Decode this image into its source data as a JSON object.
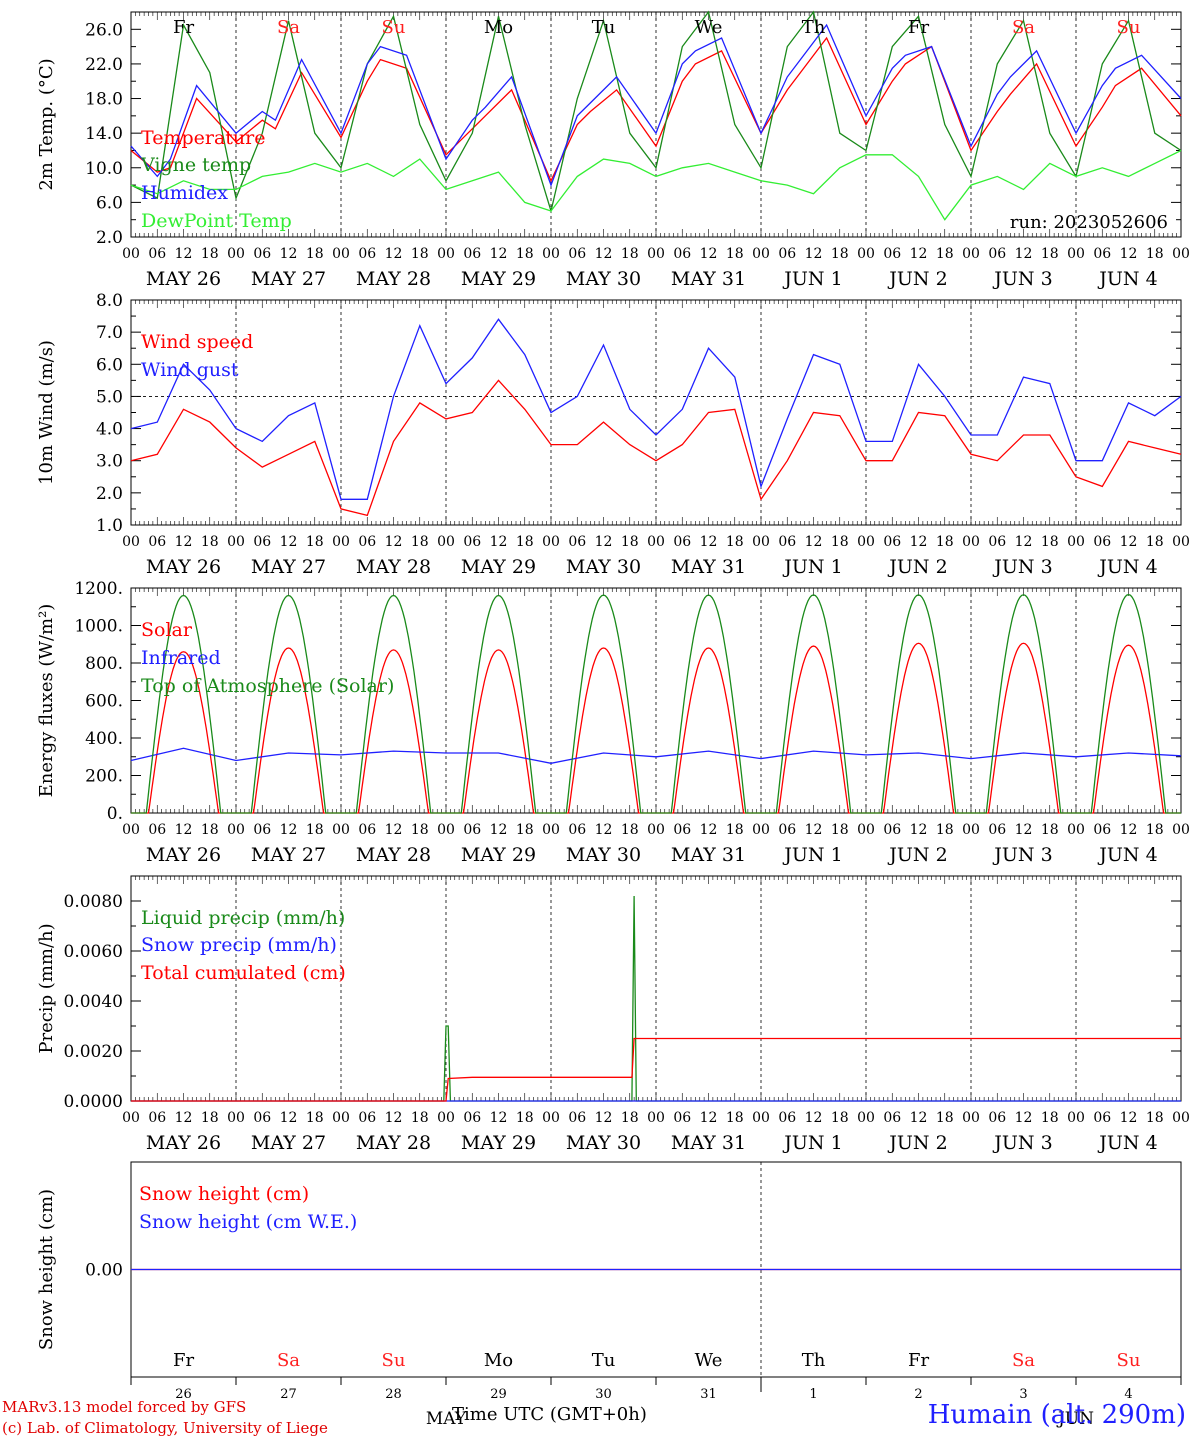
{
  "chart_data": [
    {
      "type": "line",
      "ylabel": "2m Temp. (°C)",
      "ylim": [
        2,
        28
      ],
      "yticks": [
        "2.0",
        "6.0",
        "10.0",
        "14.0",
        "18.0",
        "22.0",
        "26.0"
      ],
      "ytick_values": [
        2,
        6,
        10,
        14,
        18,
        22,
        26
      ],
      "run_label": "run: 2023052606",
      "x_day_labels": [
        "MAY 26",
        "MAY 27",
        "MAY 28",
        "MAY 29",
        "MAY 30",
        "MAY 31",
        "JUN  1",
        "JUN  2",
        "JUN  3",
        "JUN  4"
      ],
      "x_hour_labels": [
        "00",
        "06",
        "12",
        "18"
      ],
      "weekdays": [
        "Fr",
        "Sa",
        "Su",
        "Mo",
        "Tu",
        "We",
        "Th",
        "Fr",
        "Sa",
        "Su"
      ],
      "weekday_colors": [
        "#000000",
        "#ff2020",
        "#ff2020",
        "#000000",
        "#000000",
        "#000000",
        "#000000",
        "#000000",
        "#ff2020",
        "#ff2020"
      ],
      "series": [
        {
          "name": "Temperature",
          "color": "#ff0000",
          "x_hours": [
            0,
            6,
            9,
            15,
            24,
            30,
            33,
            39,
            48,
            54,
            57,
            63,
            72,
            78,
            81,
            87,
            96,
            102,
            105,
            111,
            120,
            126,
            129,
            135,
            144,
            150,
            153,
            159,
            168,
            174,
            177,
            183,
            192,
            198,
            201,
            207,
            216,
            222,
            225,
            231,
            240
          ],
          "values": [
            12.0,
            9.5,
            10.0,
            18.0,
            13.0,
            15.5,
            14.5,
            21.0,
            13.5,
            20.0,
            22.5,
            21.5,
            11.5,
            14.5,
            16.0,
            19.0,
            8.5,
            15.0,
            16.5,
            19.0,
            12.5,
            20.0,
            22.0,
            23.5,
            14.0,
            19.0,
            21.0,
            25.0,
            15.0,
            20.0,
            22.0,
            24.0,
            12.0,
            16.5,
            18.5,
            22.0,
            12.5,
            17.0,
            19.5,
            21.5,
            16.0
          ]
        },
        {
          "name": "Vigne temp",
          "color": "#1a8a1a",
          "x_hours": [
            0,
            6,
            12,
            18,
            24,
            30,
            36,
            42,
            48,
            54,
            60,
            66,
            72,
            78,
            84,
            90,
            96,
            102,
            108,
            114,
            120,
            126,
            132,
            138,
            144,
            150,
            156,
            162,
            168,
            174,
            180,
            186,
            192,
            198,
            204,
            210,
            216,
            222,
            228,
            234,
            240
          ],
          "values": [
            8.0,
            6.5,
            26.5,
            21.0,
            6.5,
            14.0,
            27.0,
            14.0,
            10.0,
            22.0,
            27.5,
            15.0,
            8.5,
            14.0,
            27.5,
            15.0,
            5.0,
            18.0,
            27.0,
            14.0,
            10.0,
            24.0,
            28.0,
            15.0,
            10.0,
            24.0,
            28.0,
            14.0,
            12.0,
            24.0,
            27.5,
            15.0,
            9.0,
            22.0,
            27.0,
            14.0,
            9.0,
            22.0,
            27.0,
            14.0,
            12.0
          ]
        },
        {
          "name": "Humidex",
          "color": "#2020ff",
          "x_hours": [
            0,
            6,
            9,
            15,
            24,
            30,
            33,
            39,
            48,
            54,
            57,
            63,
            72,
            78,
            81,
            87,
            96,
            102,
            105,
            111,
            120,
            126,
            129,
            135,
            144,
            150,
            153,
            159,
            168,
            174,
            177,
            183,
            192,
            198,
            201,
            207,
            216,
            222,
            225,
            231,
            240
          ],
          "values": [
            12.5,
            9.0,
            11.0,
            19.5,
            14.0,
            16.5,
            15.5,
            22.5,
            14.0,
            22.0,
            24.0,
            23.0,
            11.0,
            15.5,
            17.0,
            20.5,
            8.0,
            16.0,
            17.5,
            20.5,
            14.0,
            22.0,
            23.5,
            25.0,
            14.0,
            20.5,
            22.5,
            26.5,
            16.0,
            21.5,
            23.0,
            24.0,
            12.5,
            18.5,
            20.5,
            23.5,
            14.0,
            19.5,
            21.5,
            23.0,
            18.0
          ]
        },
        {
          "name": "DewPoint Temp",
          "color": "#33ee33",
          "x_hours": [
            0,
            6,
            12,
            18,
            24,
            30,
            36,
            42,
            48,
            54,
            60,
            66,
            72,
            78,
            84,
            90,
            96,
            102,
            108,
            114,
            120,
            126,
            132,
            138,
            144,
            150,
            156,
            162,
            168,
            174,
            180,
            186,
            192,
            198,
            204,
            210,
            216,
            222,
            228,
            234,
            240
          ],
          "values": [
            8.0,
            7.0,
            8.5,
            7.5,
            7.5,
            9.0,
            9.5,
            10.5,
            9.5,
            10.5,
            9.0,
            11.0,
            7.5,
            8.5,
            9.5,
            6.0,
            5.0,
            9.0,
            11.0,
            10.5,
            9.0,
            10.0,
            10.5,
            9.5,
            8.5,
            8.0,
            7.0,
            10.0,
            11.5,
            11.5,
            9.0,
            4.0,
            8.0,
            9.0,
            7.5,
            10.5,
            9.0,
            10.0,
            9.0,
            10.5,
            12.0
          ]
        }
      ]
    },
    {
      "type": "line",
      "ylabel": "10m Wind (m/s)",
      "ylim": [
        1,
        8
      ],
      "yticks": [
        "1.0",
        "2.0",
        "3.0",
        "4.0",
        "5.0",
        "6.0",
        "7.0",
        "8.0"
      ],
      "ytick_values": [
        1,
        2,
        3,
        4,
        5,
        6,
        7,
        8
      ],
      "reference_line": 5.0,
      "x_day_labels": [
        "MAY 26",
        "MAY 27",
        "MAY 28",
        "MAY 29",
        "MAY 30",
        "MAY 31",
        "JUN  1",
        "JUN  2",
        "JUN  3",
        "JUN  4"
      ],
      "x_hour_labels": [
        "00",
        "06",
        "12",
        "18"
      ],
      "series": [
        {
          "name": "Wind speed",
          "color": "#ff0000",
          "x_hours": [
            0,
            6,
            12,
            18,
            24,
            30,
            36,
            42,
            48,
            54,
            60,
            66,
            72,
            78,
            84,
            90,
            96,
            102,
            108,
            114,
            120,
            126,
            132,
            138,
            144,
            150,
            156,
            162,
            168,
            174,
            180,
            186,
            192,
            198,
            204,
            210,
            216,
            222,
            228,
            234,
            240
          ],
          "values": [
            3.0,
            3.2,
            4.6,
            4.2,
            3.4,
            2.8,
            3.2,
            3.6,
            1.5,
            1.3,
            3.6,
            4.8,
            4.3,
            4.5,
            5.5,
            4.6,
            3.5,
            3.5,
            4.2,
            3.5,
            3.0,
            3.5,
            4.5,
            4.6,
            1.8,
            3.0,
            4.5,
            4.4,
            3.0,
            3.0,
            4.5,
            4.4,
            3.2,
            3.0,
            3.8,
            3.8,
            2.5,
            2.2,
            3.6,
            3.4,
            3.2
          ]
        },
        {
          "name": "Wind gust",
          "color": "#2020ff",
          "x_hours": [
            0,
            6,
            12,
            18,
            24,
            30,
            36,
            42,
            48,
            54,
            60,
            66,
            72,
            78,
            84,
            90,
            96,
            102,
            108,
            114,
            120,
            126,
            132,
            138,
            144,
            150,
            156,
            162,
            168,
            174,
            180,
            186,
            192,
            198,
            204,
            210,
            216,
            222,
            228,
            234,
            240
          ],
          "values": [
            4.0,
            4.2,
            6.0,
            5.2,
            4.0,
            3.6,
            4.4,
            4.8,
            1.8,
            1.8,
            5.0,
            7.2,
            5.4,
            6.2,
            7.4,
            6.3,
            4.5,
            5.0,
            6.6,
            4.6,
            3.8,
            4.6,
            6.5,
            5.6,
            2.2,
            4.3,
            6.3,
            6.0,
            3.6,
            3.6,
            6.0,
            5.0,
            3.8,
            3.8,
            5.6,
            5.4,
            3.0,
            3.0,
            4.8,
            4.4,
            5.0
          ]
        }
      ]
    },
    {
      "type": "line",
      "ylabel": "Energy fluxes (W/m²)",
      "ylim": [
        0,
        1200
      ],
      "yticks": [
        "0.",
        "200.",
        "400.",
        "600.",
        "800.",
        "1000.",
        "1200."
      ],
      "ytick_values": [
        0,
        200,
        400,
        600,
        800,
        1000,
        1200
      ],
      "x_day_labels": [
        "MAY 26",
        "MAY 27",
        "MAY 28",
        "MAY 29",
        "MAY 30",
        "MAY 31",
        "JUN  1",
        "JUN  2",
        "JUN  3",
        "JUN  4"
      ],
      "x_hour_labels": [
        "00",
        "06",
        "12",
        "18"
      ],
      "series": [
        {
          "name": "Solar",
          "color": "#ff0000",
          "daily_peak": [
            860,
            880,
            870,
            870,
            880,
            880,
            890,
            905,
            905,
            895
          ],
          "sunrise_hour": 4,
          "sunset_hour": 20
        },
        {
          "name": "Infrared",
          "color": "#2020ff",
          "x_hours": [
            0,
            12,
            24,
            36,
            48,
            60,
            72,
            84,
            96,
            108,
            120,
            132,
            144,
            156,
            168,
            180,
            192,
            204,
            216,
            228,
            240
          ],
          "values": [
            280,
            345,
            280,
            320,
            310,
            330,
            320,
            320,
            265,
            320,
            300,
            330,
            290,
            330,
            310,
            320,
            290,
            320,
            300,
            320,
            305
          ]
        },
        {
          "name": "Top of Atmosphere (Solar)",
          "color": "#1a8a1a",
          "daily_peak": [
            1160,
            1160,
            1160,
            1160,
            1162,
            1162,
            1163,
            1163,
            1164,
            1165
          ],
          "sunrise_hour": 3.5,
          "sunset_hour": 20.5
        }
      ]
    },
    {
      "type": "line",
      "ylabel": "Precip (mm/h)",
      "ylim": [
        0,
        0.009
      ],
      "yticks": [
        "0.0000",
        "0.0020",
        "0.0040",
        "0.0060",
        "0.0080"
      ],
      "ytick_values": [
        0,
        0.002,
        0.004,
        0.006,
        0.008
      ],
      "x_day_labels": [
        "MAY 26",
        "MAY 27",
        "MAY 28",
        "MAY 29",
        "MAY 30",
        "MAY 31",
        "JUN  1",
        "JUN  2",
        "JUN  3",
        "JUN  4"
      ],
      "x_hour_labels": [
        "00",
        "06",
        "12",
        "18"
      ],
      "series": [
        {
          "name": "Liquid precip (mm/h)",
          "color": "#1a8a1a",
          "x_hours": [
            0,
            71.5,
            72,
            72.5,
            73,
            96,
            114.5,
            115,
            115.5,
            240
          ],
          "values": [
            0,
            0,
            0.003,
            0.003,
            0,
            0,
            0,
            0.0082,
            0,
            0
          ]
        },
        {
          "name": "Snow precip (mm/h)",
          "color": "#2020ff",
          "x_hours": [
            0,
            240
          ],
          "values": [
            0,
            0
          ]
        },
        {
          "name": "Total cumulated (cm)",
          "color": "#ff0000",
          "x_hours": [
            0,
            72,
            72.5,
            78,
            114.5,
            115,
            240
          ],
          "values": [
            0,
            0,
            0.0009,
            0.00095,
            0.00095,
            0.0025,
            0.0025
          ]
        }
      ]
    },
    {
      "type": "line",
      "ylabel": "Snow height (cm)",
      "ylim": [
        -1,
        1
      ],
      "yticks": [
        "0.00"
      ],
      "ytick_values": [
        0
      ],
      "day_numbers": [
        "26",
        "27",
        "28",
        "29",
        "30",
        "31",
        "1",
        "2",
        "3",
        "4"
      ],
      "month_labels": [
        "MAY",
        "JUN"
      ],
      "weekdays": [
        "Fr",
        "Sa",
        "Su",
        "Mo",
        "Tu",
        "We",
        "Th",
        "Fr",
        "Sa",
        "Su"
      ],
      "weekday_colors": [
        "#000000",
        "#ff2020",
        "#ff2020",
        "#000000",
        "#000000",
        "#000000",
        "#000000",
        "#000000",
        "#ff2020",
        "#ff2020"
      ],
      "series": [
        {
          "name": "Snow height (cm)",
          "color": "#ff0000",
          "x_hours": [
            0,
            240
          ],
          "values": [
            0,
            0
          ]
        },
        {
          "name": "Snow height (cm W.E.)",
          "color": "#2020ff",
          "x_hours": [
            0,
            240
          ],
          "values": [
            0,
            0
          ]
        }
      ]
    }
  ],
  "footer": {
    "xlabel": "Time UTC (GMT+0h)",
    "credit_line1": "MARv3.13 model forced by GFS",
    "credit_line2": "(c) Lab. of Climatology, University of Liege",
    "station": "Humain (alt. 290m)"
  }
}
